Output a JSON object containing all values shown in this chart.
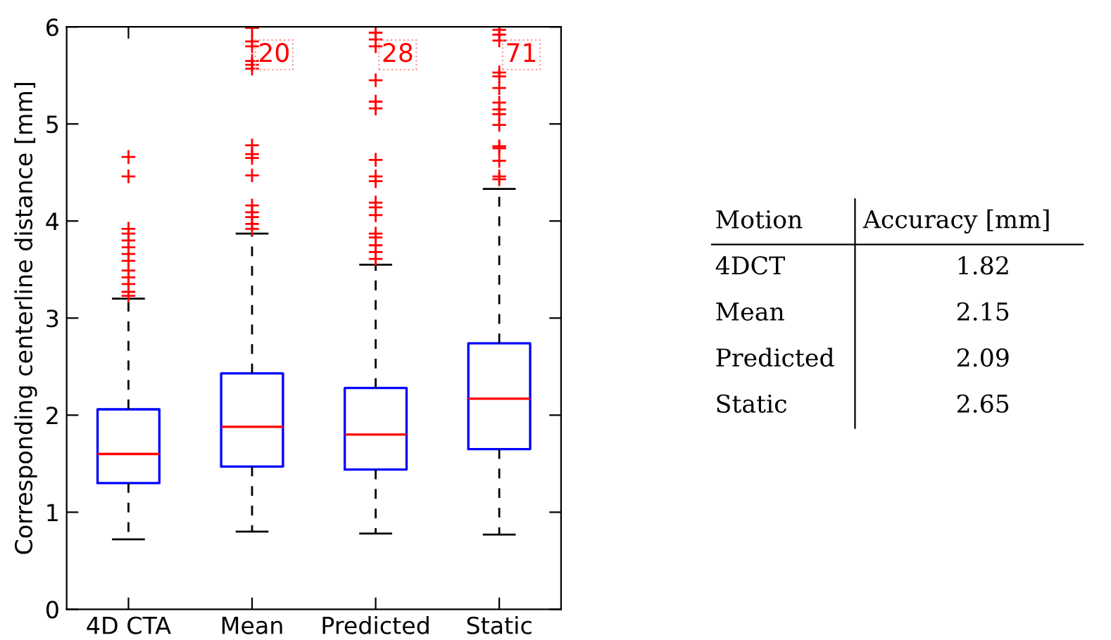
{
  "chart_data": [
    {
      "type": "box",
      "ylabel": "Corresponding centerline distance [mm]",
      "categories": [
        "4D CTA",
        "Mean",
        "Predicted",
        "Static"
      ],
      "ylim": [
        0,
        6
      ],
      "yticks": [
        0,
        1,
        2,
        3,
        4,
        5,
        6
      ],
      "series": [
        {
          "color": "#0000ff",
          "boxes": [
            {
              "low": 0.72,
              "q1": 1.3,
              "median": 1.6,
              "q3": 2.06,
              "high": 3.2,
              "outliers": [
                4.66,
                4.46,
                3.92,
                3.87,
                3.8,
                3.73,
                3.66,
                3.59,
                3.49,
                3.42,
                3.35,
                3.27,
                3.23
              ]
            },
            {
              "low": 0.8,
              "q1": 1.47,
              "median": 1.88,
              "q3": 2.43,
              "high": 3.87,
              "outliers": [
                5.99,
                5.85,
                5.8,
                5.65,
                5.61,
                5.57,
                4.78,
                4.69,
                4.65,
                4.47,
                4.16,
                4.09,
                4.04,
                3.97,
                3.92
              ]
            },
            {
              "low": 0.78,
              "q1": 1.44,
              "median": 1.8,
              "q3": 2.28,
              "high": 3.55,
              "outliers": [
                5.94,
                5.87,
                5.8,
                5.45,
                5.23,
                5.16,
                4.63,
                4.46,
                4.41,
                4.19,
                4.14,
                4.06,
                3.87,
                3.83,
                3.75,
                3.68,
                3.61
              ]
            },
            {
              "low": 0.77,
              "q1": 1.65,
              "median": 2.17,
              "q3": 2.74,
              "high": 4.33,
              "outliers": [
                5.97,
                5.92,
                5.86,
                5.53,
                5.49,
                5.37,
                5.22,
                5.15,
                5.1,
                4.99,
                4.77,
                4.75,
                4.62,
                4.46,
                4.43
              ]
            }
          ]
        }
      ],
      "annotations": [
        "20",
        "28",
        "71"
      ],
      "grid": false
    },
    {
      "type": "other",
      "xlabel": "Motion",
      "ylabel": "Accuracy [mm]",
      "categories": [
        "4DCT",
        "Mean",
        "Predicted",
        "Static"
      ],
      "values": [
        1.82,
        2.15,
        2.09,
        2.65
      ],
      "data_labels": true
    }
  ]
}
